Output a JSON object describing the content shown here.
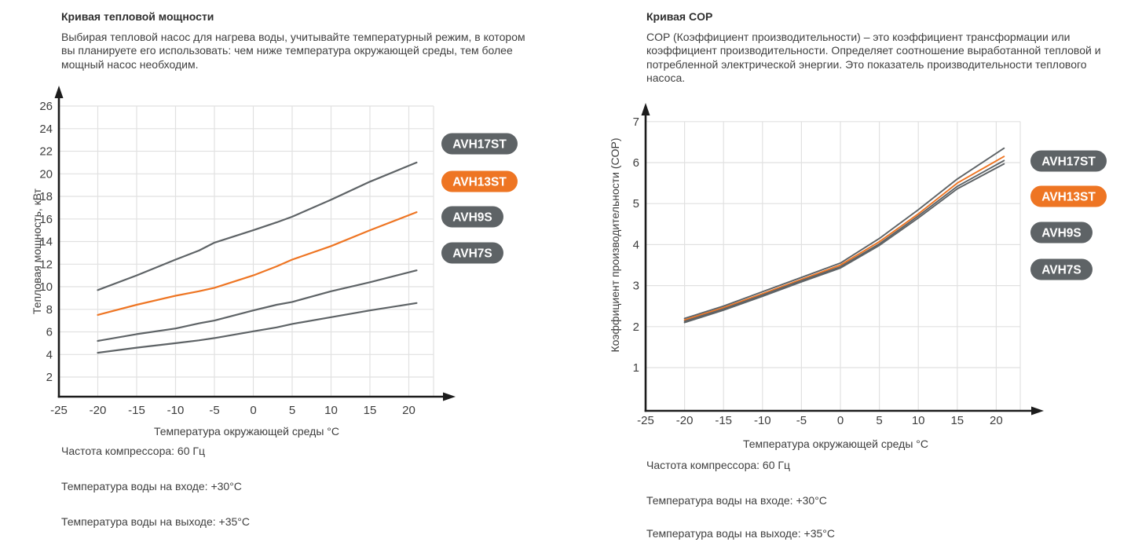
{
  "charts": [
    {
      "title": "Кривая тепловой мощности",
      "description": "Выбирая тепловой насос для нагрева воды, учитывайте температурный режим, в котором вы планируете его использовать: чем ниже температура окружающей среды, тем более мощный насос необходим.",
      "footnotes": [
        "Частота компрессора: 60 Гц",
        "Температура воды на входе: +30°C",
        "Температура воды на выходе: +35°C"
      ]
    },
    {
      "title": "Кривая COP",
      "description": "COP (Коэффициент производительности) – это коэффициент трансформации или коэффициент производительности. Определяет соотношение выработанной тепловой и потребленной электрической энергии. Это показатель производительности теплового насоса.",
      "footnotes": [
        "Частота компрессора: 60 Гц",
        "Температура воды на входе: +30°C",
        "Температура воды на выходе: +35°C"
      ]
    }
  ],
  "colors": {
    "accent_orange": "#EE7523",
    "series_gray": "#5E6366",
    "grid": "#E1E1E1",
    "axis": "#1C1C1C",
    "text": "#3D3D3D"
  },
  "chart_data": [
    {
      "type": "line",
      "title": "Кривая тепловой мощности",
      "xlabel": "Температура окружающей среды °C",
      "ylabel": "Тепловая мощность, кВт",
      "xlim": [
        -25,
        23.5
      ],
      "ylim": [
        0,
        27.5
      ],
      "xticks": [
        -25,
        -20,
        -15,
        -10,
        -5,
        0,
        5,
        10,
        15,
        20
      ],
      "yticks": [
        2,
        4,
        6,
        8,
        10,
        12,
        14,
        16,
        18,
        20,
        22,
        24,
        26
      ],
      "grid": true,
      "legend_position": "right",
      "legend": [
        "AVH17ST",
        "AVH13ST",
        "AVH9S",
        "AVH7S"
      ],
      "x": [
        -20,
        -15,
        -10,
        -7,
        -5,
        0,
        3,
        5,
        10,
        15,
        21
      ],
      "series": [
        {
          "name": "AVH17ST",
          "color": "#5E6366",
          "values": [
            9.7,
            11.0,
            12.4,
            13.2,
            13.9,
            15.0,
            15.7,
            16.2,
            17.7,
            19.3,
            21.0
          ]
        },
        {
          "name": "AVH13ST",
          "color": "#EE7523",
          "values": [
            7.5,
            8.4,
            9.2,
            9.6,
            9.9,
            11.0,
            11.8,
            12.4,
            13.6,
            15.0,
            16.6
          ]
        },
        {
          "name": "AVH9S",
          "color": "#5E6366",
          "values": [
            5.2,
            5.8,
            6.3,
            6.75,
            7.0,
            7.9,
            8.4,
            8.65,
            9.6,
            10.4,
            11.45
          ]
        },
        {
          "name": "AVH7S",
          "color": "#5E6366",
          "values": [
            4.15,
            4.6,
            5.0,
            5.25,
            5.45,
            6.05,
            6.4,
            6.7,
            7.3,
            7.9,
            8.55
          ]
        }
      ]
    },
    {
      "type": "line",
      "title": "Кривая COP",
      "xlabel": "Температура окружающей среды °C",
      "ylabel": "Коэффициент производительности (COP)",
      "xlim": [
        -25,
        23.5
      ],
      "ylim": [
        0,
        7.3
      ],
      "xticks": [
        -25,
        -20,
        -15,
        -10,
        -5,
        0,
        5,
        10,
        15,
        20
      ],
      "yticks": [
        1,
        2,
        3,
        4,
        5,
        6,
        7
      ],
      "grid": true,
      "legend_position": "right",
      "legend": [
        "AVH17ST",
        "AVH13ST",
        "AVH9S",
        "AVH7S"
      ],
      "x": [
        -20,
        -15,
        -10,
        -5,
        0,
        5,
        10,
        15,
        21
      ],
      "series": [
        {
          "name": "AVH17ST",
          "color": "#5E6366",
          "values": [
            2.2,
            2.5,
            2.85,
            3.2,
            3.55,
            4.15,
            4.85,
            5.6,
            6.35
          ]
        },
        {
          "name": "AVH13ST",
          "color": "#EE7523",
          "values": [
            2.16,
            2.46,
            2.8,
            3.15,
            3.5,
            4.07,
            4.75,
            5.5,
            6.15
          ]
        },
        {
          "name": "AVH9S",
          "color": "#5E6366",
          "values": [
            2.13,
            2.43,
            2.77,
            3.12,
            3.46,
            4.02,
            4.7,
            5.42,
            6.05
          ]
        },
        {
          "name": "AVH7S",
          "color": "#5E6366",
          "values": [
            2.1,
            2.4,
            2.74,
            3.09,
            3.43,
            3.98,
            4.65,
            5.36,
            5.97
          ]
        }
      ]
    }
  ]
}
